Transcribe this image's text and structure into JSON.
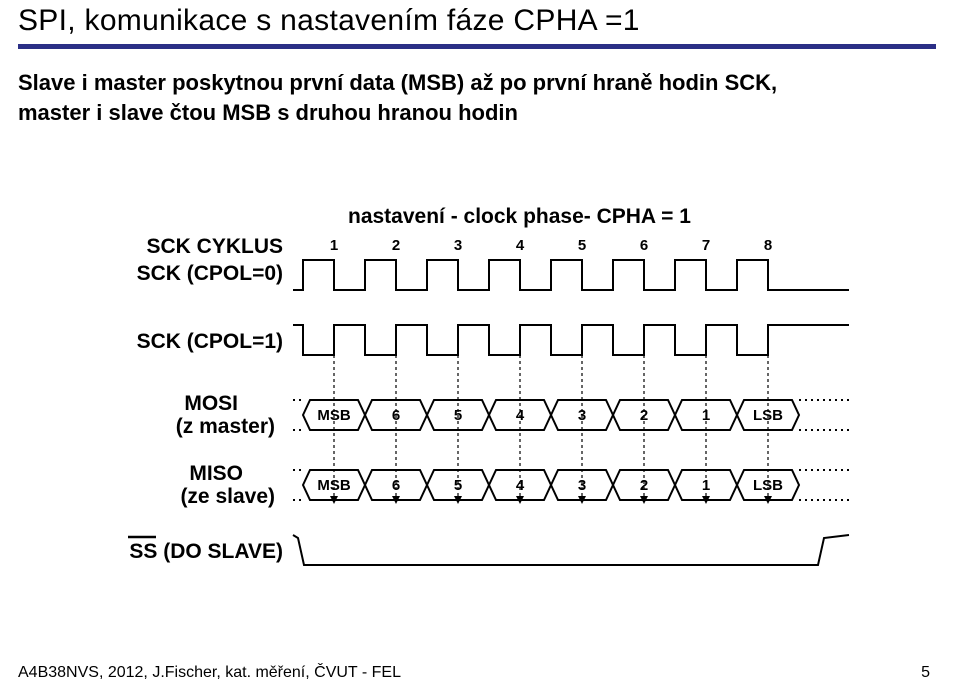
{
  "title": "SPI, komunikace s nastavením fáze CPHA =1",
  "subtitle_line1": "Slave i master  poskytnou první data (MSB) až po první hraně hodin SCK,",
  "subtitle_line2": "master i slave čtou MSB s druhou hranou hodin",
  "footer": "A4B38NVS, 2012, J.Fischer, kat. měření, ČVUT - FEL",
  "page_num": "5",
  "diagram": {
    "heading": "nastavení - clock phase-  CPHA = 1",
    "labels": {
      "cyklus": "SCK CYKLUS",
      "cpol0": "SCK (CPOL=0)",
      "cpol1": "SCK (CPOL=1)",
      "mosi1": "MOSI",
      "mosi2": "(z master)",
      "miso1": "MISO",
      "miso2": "(ze slave)",
      "ss": "SS (DO SLAVE)"
    },
    "cycle_nums": [
      "1",
      "2",
      "3",
      "4",
      "5",
      "6",
      "7",
      "8"
    ],
    "data_bits": [
      "MSB",
      "6",
      "5",
      "4",
      "3",
      "2",
      "1",
      "LSB"
    ],
    "colors": {
      "stroke": "#000000",
      "bg": "#ffffff"
    },
    "stroke_width": 2,
    "font_size_labels": 21,
    "font_size_heading": 21,
    "font_size_bits": 15,
    "font_size_nums": 15
  }
}
